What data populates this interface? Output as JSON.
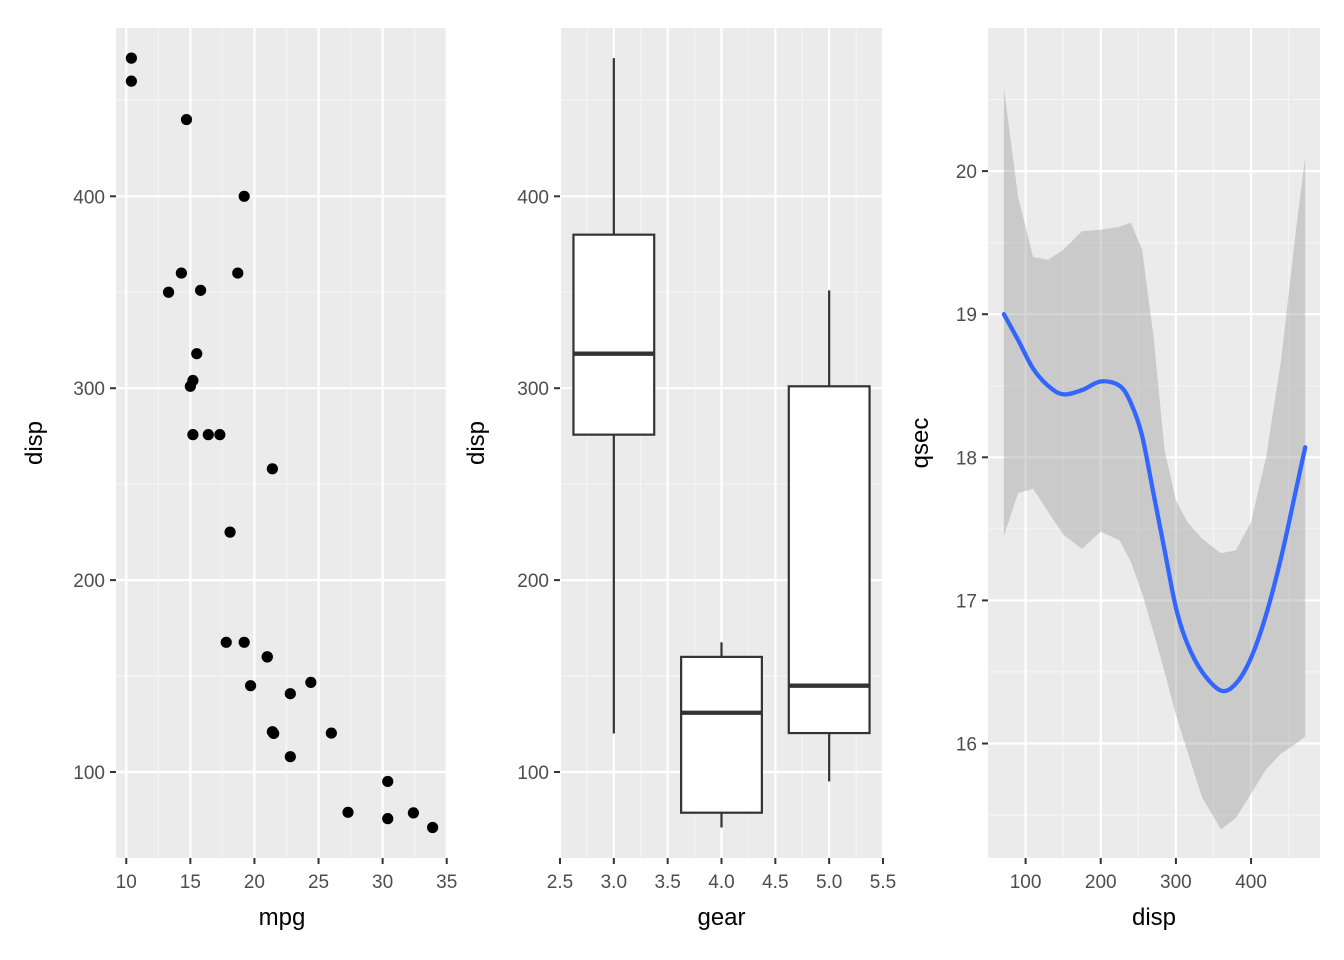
{
  "colors": {
    "panel_bg": "#EBEBEB",
    "grid_major": "#FFFFFF",
    "grid_minor": "#F5F5F5",
    "point": "#000000",
    "box_line": "#333333",
    "box_fill": "#FFFFFF",
    "smooth_line": "#3366FF",
    "ribbon": "#999999"
  },
  "chart_data": [
    {
      "type": "scatter",
      "xlabel": "mpg",
      "ylabel": "disp",
      "xlim": [
        9.2,
        35.1
      ],
      "ylim": [
        55.2,
        487.7
      ],
      "x_ticks": [
        10,
        15,
        20,
        25,
        30,
        35
      ],
      "x_tick_labels": [
        "10",
        "15",
        "20",
        "25",
        "30",
        "35"
      ],
      "y_ticks": [
        100,
        200,
        300,
        400
      ],
      "y_tick_labels": [
        "100",
        "200",
        "300",
        "400"
      ],
      "grid": true,
      "points": [
        {
          "x": 21.0,
          "y": 160
        },
        {
          "x": 21.0,
          "y": 160
        },
        {
          "x": 22.8,
          "y": 108
        },
        {
          "x": 21.4,
          "y": 258
        },
        {
          "x": 18.7,
          "y": 360
        },
        {
          "x": 18.1,
          "y": 225
        },
        {
          "x": 14.3,
          "y": 360
        },
        {
          "x": 24.4,
          "y": 146.7
        },
        {
          "x": 22.8,
          "y": 140.8
        },
        {
          "x": 19.2,
          "y": 167.6
        },
        {
          "x": 17.8,
          "y": 167.6
        },
        {
          "x": 16.4,
          "y": 275.8
        },
        {
          "x": 17.3,
          "y": 275.8
        },
        {
          "x": 15.2,
          "y": 275.8
        },
        {
          "x": 10.4,
          "y": 472
        },
        {
          "x": 10.4,
          "y": 460
        },
        {
          "x": 14.7,
          "y": 440
        },
        {
          "x": 32.4,
          "y": 78.7
        },
        {
          "x": 30.4,
          "y": 75.7
        },
        {
          "x": 33.9,
          "y": 71.1
        },
        {
          "x": 21.5,
          "y": 120.1
        },
        {
          "x": 15.5,
          "y": 318
        },
        {
          "x": 15.2,
          "y": 304
        },
        {
          "x": 13.3,
          "y": 350
        },
        {
          "x": 19.2,
          "y": 400
        },
        {
          "x": 27.3,
          "y": 79
        },
        {
          "x": 26.0,
          "y": 120.3
        },
        {
          "x": 30.4,
          "y": 95.1
        },
        {
          "x": 15.8,
          "y": 351
        },
        {
          "x": 19.7,
          "y": 145
        },
        {
          "x": 15.0,
          "y": 301
        },
        {
          "x": 21.4,
          "y": 121
        }
      ]
    },
    {
      "type": "box",
      "xlabel": "gear",
      "ylabel": "disp",
      "xlim": [
        2.5,
        5.5
      ],
      "ylim": [
        55.2,
        487.7
      ],
      "x_ticks": [
        2.5,
        3.0,
        3.5,
        4.0,
        4.5,
        5.0,
        5.5
      ],
      "x_tick_labels": [
        "2.5",
        "3.0",
        "3.5",
        "4.0",
        "4.5",
        "5.0",
        "5.5"
      ],
      "y_ticks": [
        100,
        200,
        300,
        400
      ],
      "y_tick_labels": [
        "100",
        "200",
        "300",
        "400"
      ],
      "grid": true,
      "boxes": [
        {
          "x": 3,
          "min": 120.1,
          "q1": 275.8,
          "median": 318,
          "q3": 380,
          "max": 472
        },
        {
          "x": 4,
          "min": 71.1,
          "q1": 78.8,
          "median": 130.9,
          "q3": 160,
          "max": 167.6
        },
        {
          "x": 5,
          "min": 95.1,
          "q1": 120.3,
          "median": 145,
          "q3": 301,
          "max": 351
        }
      ]
    },
    {
      "type": "line",
      "xlabel": "disp",
      "ylabel": "qsec",
      "xlim": [
        50.0,
        491.7
      ],
      "ylim": [
        15.2,
        21.0
      ],
      "x_ticks": [
        100,
        200,
        300,
        400
      ],
      "x_tick_labels": [
        "100",
        "200",
        "300",
        "400"
      ],
      "y_ticks": [
        16,
        17,
        18,
        19,
        20
      ],
      "y_tick_labels": [
        "16",
        "17",
        "18",
        "19",
        "20"
      ],
      "grid": true,
      "x": [
        71.1,
        90,
        110,
        130,
        150,
        175,
        200,
        225,
        240,
        255,
        270,
        285,
        300,
        315,
        335,
        360,
        380,
        400,
        420,
        440,
        460,
        472
      ],
      "y": [
        19.0,
        18.82,
        18.62,
        18.5,
        18.44,
        18.47,
        18.53,
        18.5,
        18.38,
        18.15,
        17.75,
        17.35,
        16.95,
        16.7,
        16.5,
        16.37,
        16.42,
        16.6,
        16.9,
        17.3,
        17.78,
        18.07
      ],
      "lower": [
        17.45,
        17.75,
        17.78,
        17.62,
        17.46,
        17.36,
        17.48,
        17.42,
        17.27,
        17.05,
        16.78,
        16.5,
        16.2,
        15.95,
        15.62,
        15.4,
        15.48,
        15.65,
        15.82,
        15.93,
        16.0,
        16.05
      ],
      "upper": [
        20.58,
        19.82,
        19.4,
        19.38,
        19.45,
        19.58,
        19.59,
        19.61,
        19.64,
        19.45,
        18.85,
        18.05,
        17.7,
        17.55,
        17.43,
        17.33,
        17.35,
        17.55,
        18.0,
        18.68,
        19.6,
        20.1
      ]
    }
  ]
}
